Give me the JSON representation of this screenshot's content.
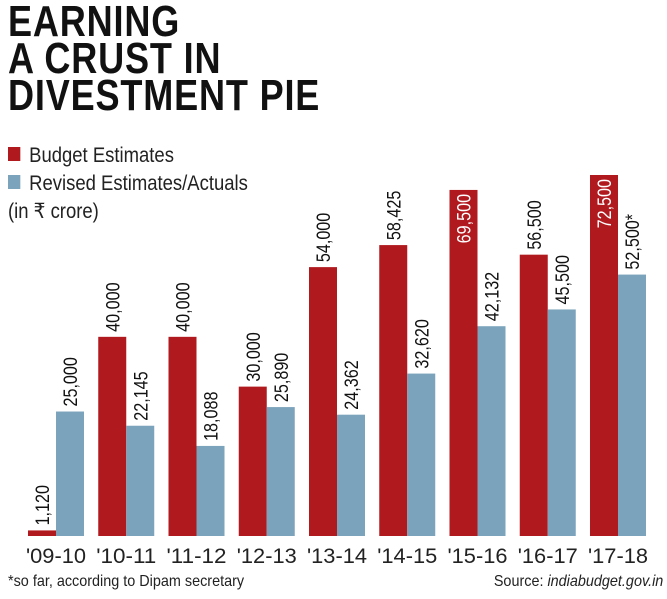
{
  "title_lines": [
    "EARNING",
    "A CRUST IN",
    "DIVESTMENT PIE"
  ],
  "legend": {
    "budget": "Budget Estimates",
    "revised": "Revised Estimates/Actuals",
    "unit": "(in ₹ crore)"
  },
  "footnote": "*so far, according to Dipam secretary",
  "source_label": "Source: ",
  "source_site": "indiabudget.gov.in",
  "colors": {
    "budget": "#b01a1f",
    "revised": "#7ba3bb"
  },
  "chart_data": {
    "type": "bar",
    "title": "Earning a crust in divestment pie",
    "ylabel": "in ₹ crore",
    "categories": [
      "'09-10",
      "'10-11",
      "'11-12",
      "'12-13",
      "'13-14",
      "'14-15",
      "'15-16",
      "'16-17",
      "'17-18"
    ],
    "series": [
      {
        "name": "Budget Estimates",
        "values": [
          1120,
          40000,
          40000,
          30000,
          54000,
          58425,
          69500,
          56500,
          72500
        ],
        "labels": [
          "1,120",
          "40,000",
          "40,000",
          "30,000",
          "54,000",
          "58,425",
          "69,500",
          "56,500",
          "72,500"
        ]
      },
      {
        "name": "Revised Estimates/Actuals",
        "values": [
          25000,
          22145,
          18088,
          25890,
          24362,
          32620,
          42132,
          45500,
          52500
        ],
        "labels": [
          "25,000",
          "22,145",
          "18,088",
          "25,890",
          "24,362",
          "32,620",
          "42,132",
          "45,500",
          "52,500*"
        ]
      }
    ],
    "ylim": [
      0,
      72500
    ],
    "grid": false,
    "legend_position": "top-left"
  }
}
